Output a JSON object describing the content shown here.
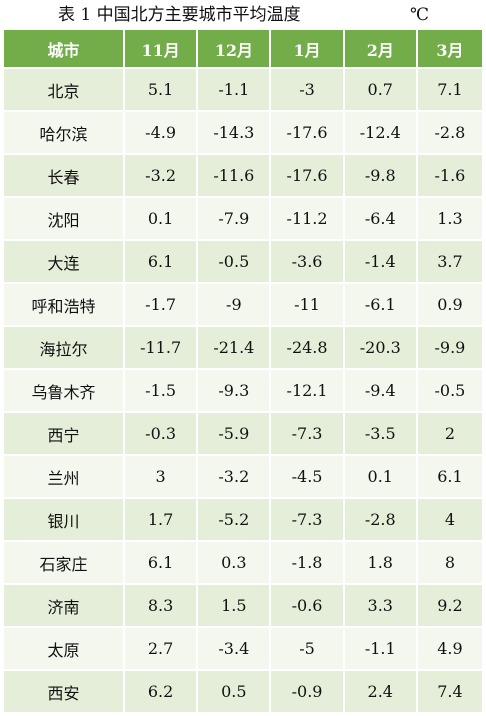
{
  "title": {
    "caption": "表 1   中国北方主要城市平均温度",
    "unit": "℃"
  },
  "table": {
    "headers": [
      "城市",
      "11月",
      "12月",
      "1月",
      "2月",
      "3月"
    ],
    "rows": [
      {
        "city": "北京",
        "values": [
          "5.1",
          "-1.1",
          "-3",
          "0.7",
          "7.1"
        ]
      },
      {
        "city": "哈尔滨",
        "values": [
          "-4.9",
          "-14.3",
          "-17.6",
          "-12.4",
          "-2.8"
        ]
      },
      {
        "city": "长春",
        "values": [
          "-3.2",
          "-11.6",
          "-17.6",
          "-9.8",
          "-1.6"
        ]
      },
      {
        "city": "沈阳",
        "values": [
          "0.1",
          "-7.9",
          "-11.2",
          "-6.4",
          "1.3"
        ]
      },
      {
        "city": "大连",
        "values": [
          "6.1",
          "-0.5",
          "-3.6",
          "-1.4",
          "3.7"
        ]
      },
      {
        "city": "呼和浩特",
        "values": [
          "-1.7",
          "-9",
          "-11",
          "-6.1",
          "0.9"
        ]
      },
      {
        "city": "海拉尔",
        "values": [
          "-11.7",
          "-21.4",
          "-24.8",
          "-20.3",
          "-9.9"
        ]
      },
      {
        "city": "乌鲁木齐",
        "values": [
          "-1.5",
          "-9.3",
          "-12.1",
          "-9.4",
          "-0.5"
        ]
      },
      {
        "city": "西宁",
        "values": [
          "-0.3",
          "-5.9",
          "-7.3",
          "-3.5",
          "2"
        ]
      },
      {
        "city": "兰州",
        "values": [
          "3",
          "-3.2",
          "-4.5",
          "0.1",
          "6.1"
        ]
      },
      {
        "city": "银川",
        "values": [
          "1.7",
          "-5.2",
          "-7.3",
          "-2.8",
          "4"
        ]
      },
      {
        "city": "石家庄",
        "values": [
          "6.1",
          "0.3",
          "-1.8",
          "1.8",
          "8"
        ]
      },
      {
        "city": "济南",
        "values": [
          "8.3",
          "1.5",
          "-0.6",
          "3.3",
          "9.2"
        ]
      },
      {
        "city": "太原",
        "values": [
          "2.7",
          "-3.4",
          "-5",
          "-1.1",
          "4.9"
        ]
      },
      {
        "city": "西安",
        "values": [
          "6.2",
          "0.5",
          "-0.9",
          "2.4",
          "7.4"
        ]
      }
    ]
  }
}
